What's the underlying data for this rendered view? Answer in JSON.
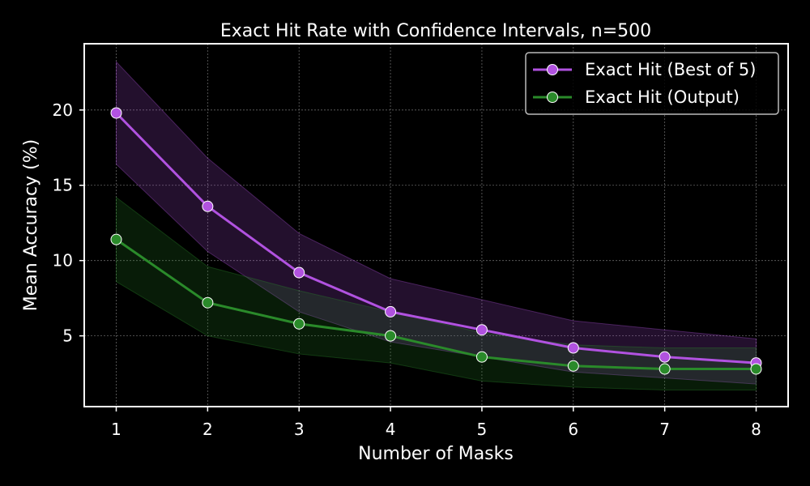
{
  "chart_data": {
    "type": "line",
    "title": "Exact Hit Rate with Confidence Intervals, n=500",
    "xlabel": "Number of Masks",
    "ylabel": "Mean Accuracy (%)",
    "x": [
      1,
      2,
      3,
      4,
      5,
      6,
      7,
      8
    ],
    "xlim": [
      0.65,
      8.35
    ],
    "ylim": [
      0.3,
      24.4
    ],
    "yticks": [
      5,
      10,
      15,
      20
    ],
    "grid": true,
    "legend_position": "top-right",
    "series": [
      {
        "name": "Exact Hit (Best of 5)",
        "color": "#b152e0",
        "values": [
          19.8,
          13.6,
          9.2,
          6.6,
          5.4,
          4.2,
          3.6,
          3.2
        ],
        "ci_lower": [
          16.4,
          10.6,
          6.6,
          4.6,
          3.6,
          2.6,
          2.2,
          1.8
        ],
        "ci_upper": [
          23.2,
          16.8,
          11.8,
          8.8,
          7.4,
          6.0,
          5.4,
          4.8
        ]
      },
      {
        "name": "Exact Hit (Output)",
        "color": "#2a8a2a",
        "values": [
          11.4,
          7.2,
          5.8,
          5.0,
          3.6,
          3.0,
          2.8,
          2.8
        ],
        "ci_lower": [
          8.6,
          5.0,
          3.8,
          3.2,
          2.0,
          1.6,
          1.4,
          1.4
        ],
        "ci_upper": [
          14.2,
          9.6,
          8.0,
          6.6,
          5.2,
          4.4,
          4.2,
          4.2
        ]
      }
    ]
  }
}
